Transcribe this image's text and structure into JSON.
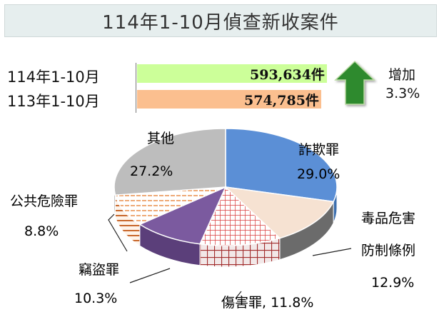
{
  "title": "114年1-10月偵查新收案件",
  "comparison": {
    "rows": [
      {
        "label": "114年1-10月",
        "value": 593634,
        "value_text": "593,634件",
        "color": "#ccff99"
      },
      {
        "label": "113年1-10月",
        "value": 574785,
        "value_text": "574,785件",
        "color": "#fbbf8f"
      }
    ],
    "change_label": "增加",
    "change_value": "3.3%",
    "arrow_color": "#2d8a2d"
  },
  "chart_data": {
    "type": "pie",
    "slices": [
      {
        "name": "詐欺罪",
        "value": 29.0,
        "value_text": "29.0%",
        "color": "#5b8fd6"
      },
      {
        "name": "毒品危害防制條例",
        "value": 12.9,
        "value_text": "12.9%",
        "color": "#f6e2d2"
      },
      {
        "name": "傷害罪",
        "value": 11.8,
        "value_text": "11.8%",
        "color": "#ffffff",
        "pattern": "grid-red"
      },
      {
        "name": "竊盜罪",
        "value": 10.3,
        "value_text": "10.3%",
        "color": "#7b5a9f"
      },
      {
        "name": "公共危險罪",
        "value": 8.8,
        "value_text": "8.8%",
        "color": "#ffffff",
        "pattern": "stripes-orange"
      },
      {
        "name": "其他",
        "value": 27.2,
        "value_text": "27.2%",
        "color": "#bdbdbd"
      }
    ],
    "labels": {
      "fraud_name": "詐欺罪",
      "drug_name_1": "毒品危害",
      "drug_name_2": "防制條例",
      "injury_text": "傷害罪, 11.8%",
      "theft_name": "竊盜罪",
      "public_name": "公共危險罪",
      "other_name": "其他"
    }
  }
}
